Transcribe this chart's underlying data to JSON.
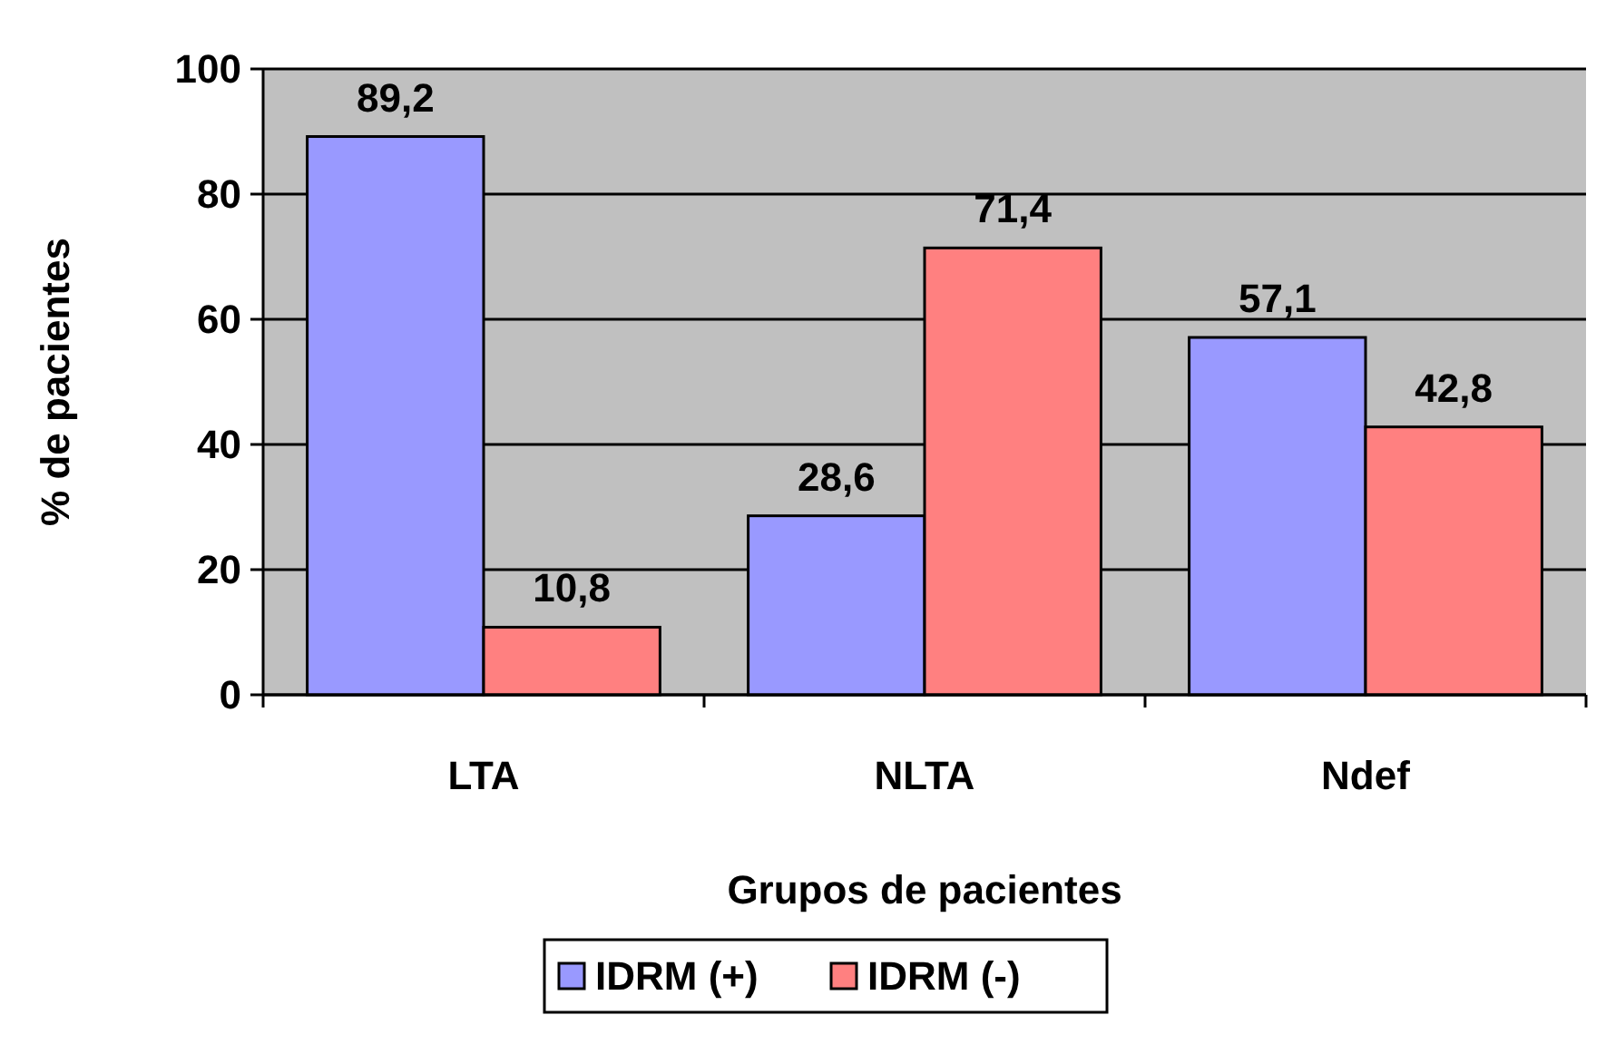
{
  "chart_data": {
    "type": "bar",
    "xlabel": "Grupos de pacientes",
    "ylabel": "% de pacientes",
    "categories": [
      "LTA",
      "NLTA",
      "Ndef"
    ],
    "series": [
      {
        "name": "IDRM (+)",
        "color": "#9999ff",
        "values": [
          89.2,
          28.6,
          57.1
        ],
        "value_labels": [
          "89,2",
          "28,6",
          "57,1"
        ]
      },
      {
        "name": "IDRM (-)",
        "color": "#ff8080",
        "values": [
          10.8,
          71.4,
          42.8
        ],
        "value_labels": [
          "10,8",
          "71,4",
          "42,8"
        ]
      }
    ],
    "ylim": [
      0,
      100
    ],
    "yticks": [
      0,
      20,
      40,
      60,
      80,
      100
    ],
    "grid": "y",
    "legend": "bottom"
  }
}
